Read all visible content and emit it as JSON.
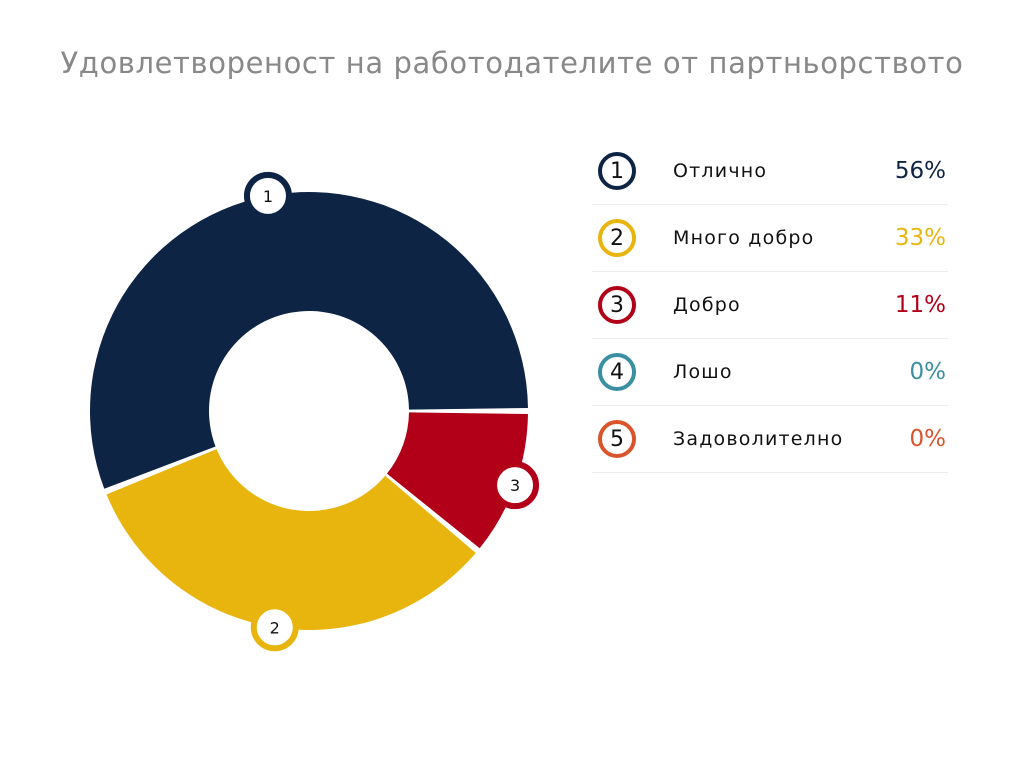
{
  "chart_data": {
    "type": "pie",
    "title": "Удовлетвореност на работодателите от партньорството",
    "categories": [
      "Отлично",
      "Много добро",
      "Добро",
      "Лошо",
      "Задоволително"
    ],
    "values": [
      56,
      33,
      11,
      0,
      0
    ],
    "value_labels": [
      "56%",
      "33%",
      "11%",
      "0%",
      "0%"
    ],
    "markers": [
      "1",
      "2",
      "3",
      "4",
      "5"
    ],
    "colors": [
      "#0e2444",
      "#e8b50e",
      "#b20018",
      "#3a8fa3",
      "#d9542a"
    ],
    "donut": true,
    "legend_position": "right"
  }
}
